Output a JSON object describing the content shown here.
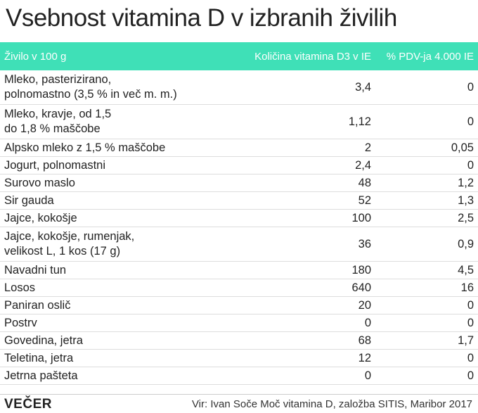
{
  "header": {
    "title": "Vsebnost vitamina D v izbranih živilih"
  },
  "table": {
    "columns": [
      "Živilo v 100 g",
      "Količina vitamina D3 v IE",
      "% PDV-ja 4.000 IE"
    ],
    "rows": [
      [
        "Mleko, pasterizirano,\npolnomastno (3,5 % in več m. m.)",
        "3,4",
        "0"
      ],
      [
        "Mleko, kravje, od 1,5\ndo 1,8 % maščobe",
        "1,12",
        "0"
      ],
      [
        "Alpsko mleko z 1,5 % maščobe",
        "2",
        "0,05"
      ],
      [
        "Jogurt, polnomastni",
        "2,4",
        "0"
      ],
      [
        "Surovo maslo",
        "48",
        "1,2"
      ],
      [
        "Sir gauda",
        "52",
        "1,3"
      ],
      [
        "Jajce, kokošje",
        "100",
        "2,5"
      ],
      [
        "Jajce, kokošje, rumenjak,\nvelikost L, 1 kos (17 g)",
        "36",
        "0,9"
      ],
      [
        "Navadni tun",
        "180",
        "4,5"
      ],
      [
        "Losos",
        "640",
        "16"
      ],
      [
        "Paniran oslič",
        "20",
        "0"
      ],
      [
        "Postrv",
        "0",
        "0"
      ],
      [
        "Govedina, jetra",
        "68",
        "1,7"
      ],
      [
        "Teletina, jetra",
        "12",
        "0"
      ],
      [
        "Jetrna pašteta",
        "0",
        "0"
      ]
    ]
  },
  "footer": {
    "brand": "VEČER",
    "source": "Vir: Ivan Soče Moč vitamina D, založba SITIS, Maribor 2017"
  }
}
